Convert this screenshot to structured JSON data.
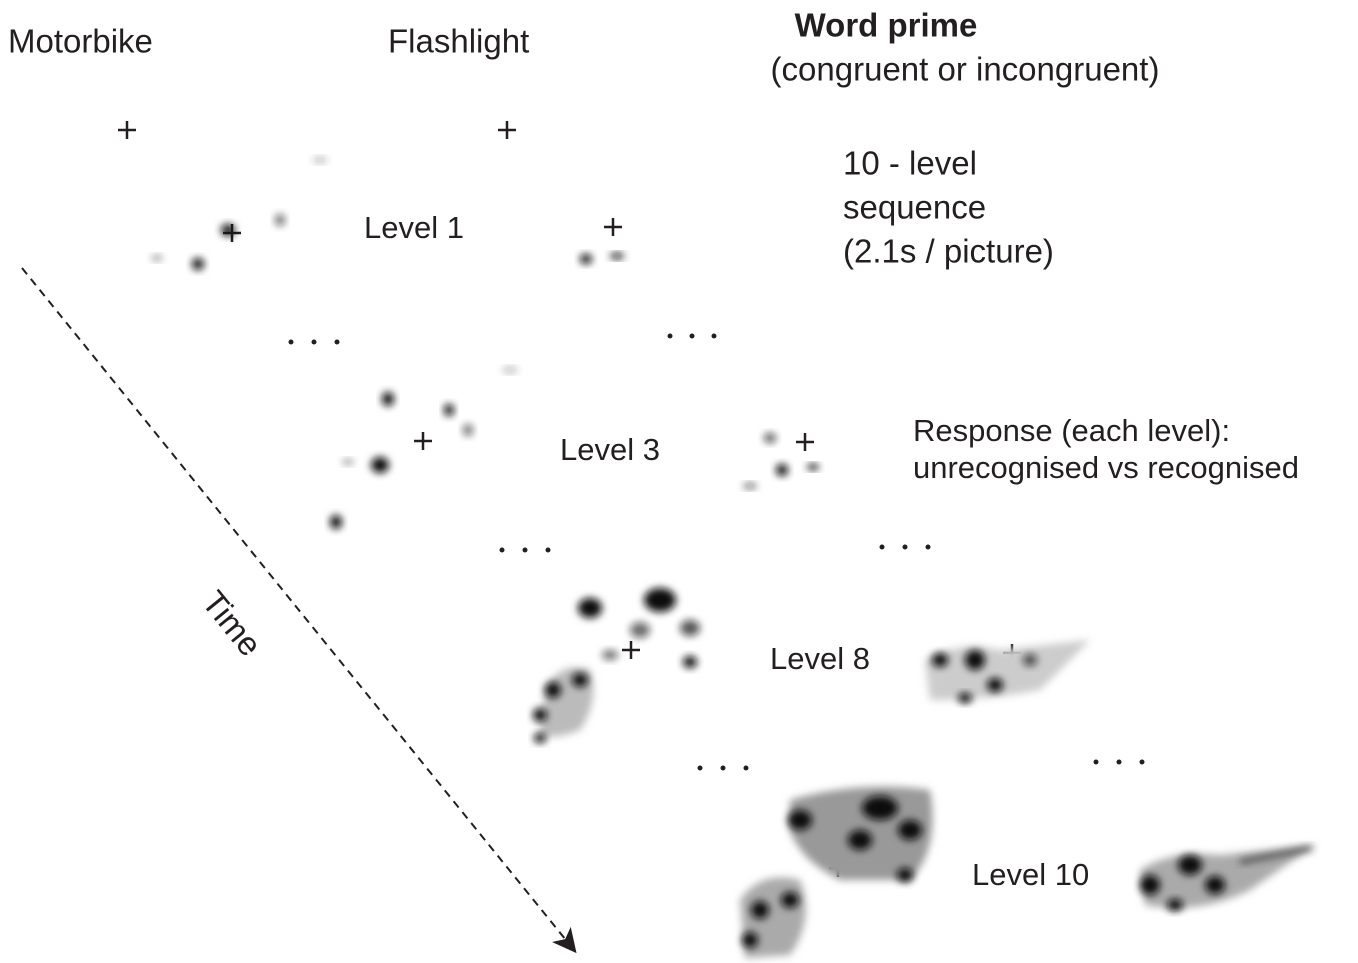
{
  "columns": [
    "Motorbike",
    "Flashlight"
  ],
  "word_prime": {
    "title": "Word prime",
    "subtitle": "(congruent or incongruent)"
  },
  "sequence": [
    "10 - level",
    "sequence",
    "(2.1s / picture)"
  ],
  "levels": [
    "Level 1",
    "Level 3",
    "Level 8",
    "Level 10"
  ],
  "response": [
    "Response (each level):",
    "unrecognised vs recognised"
  ],
  "time_label": "Time"
}
